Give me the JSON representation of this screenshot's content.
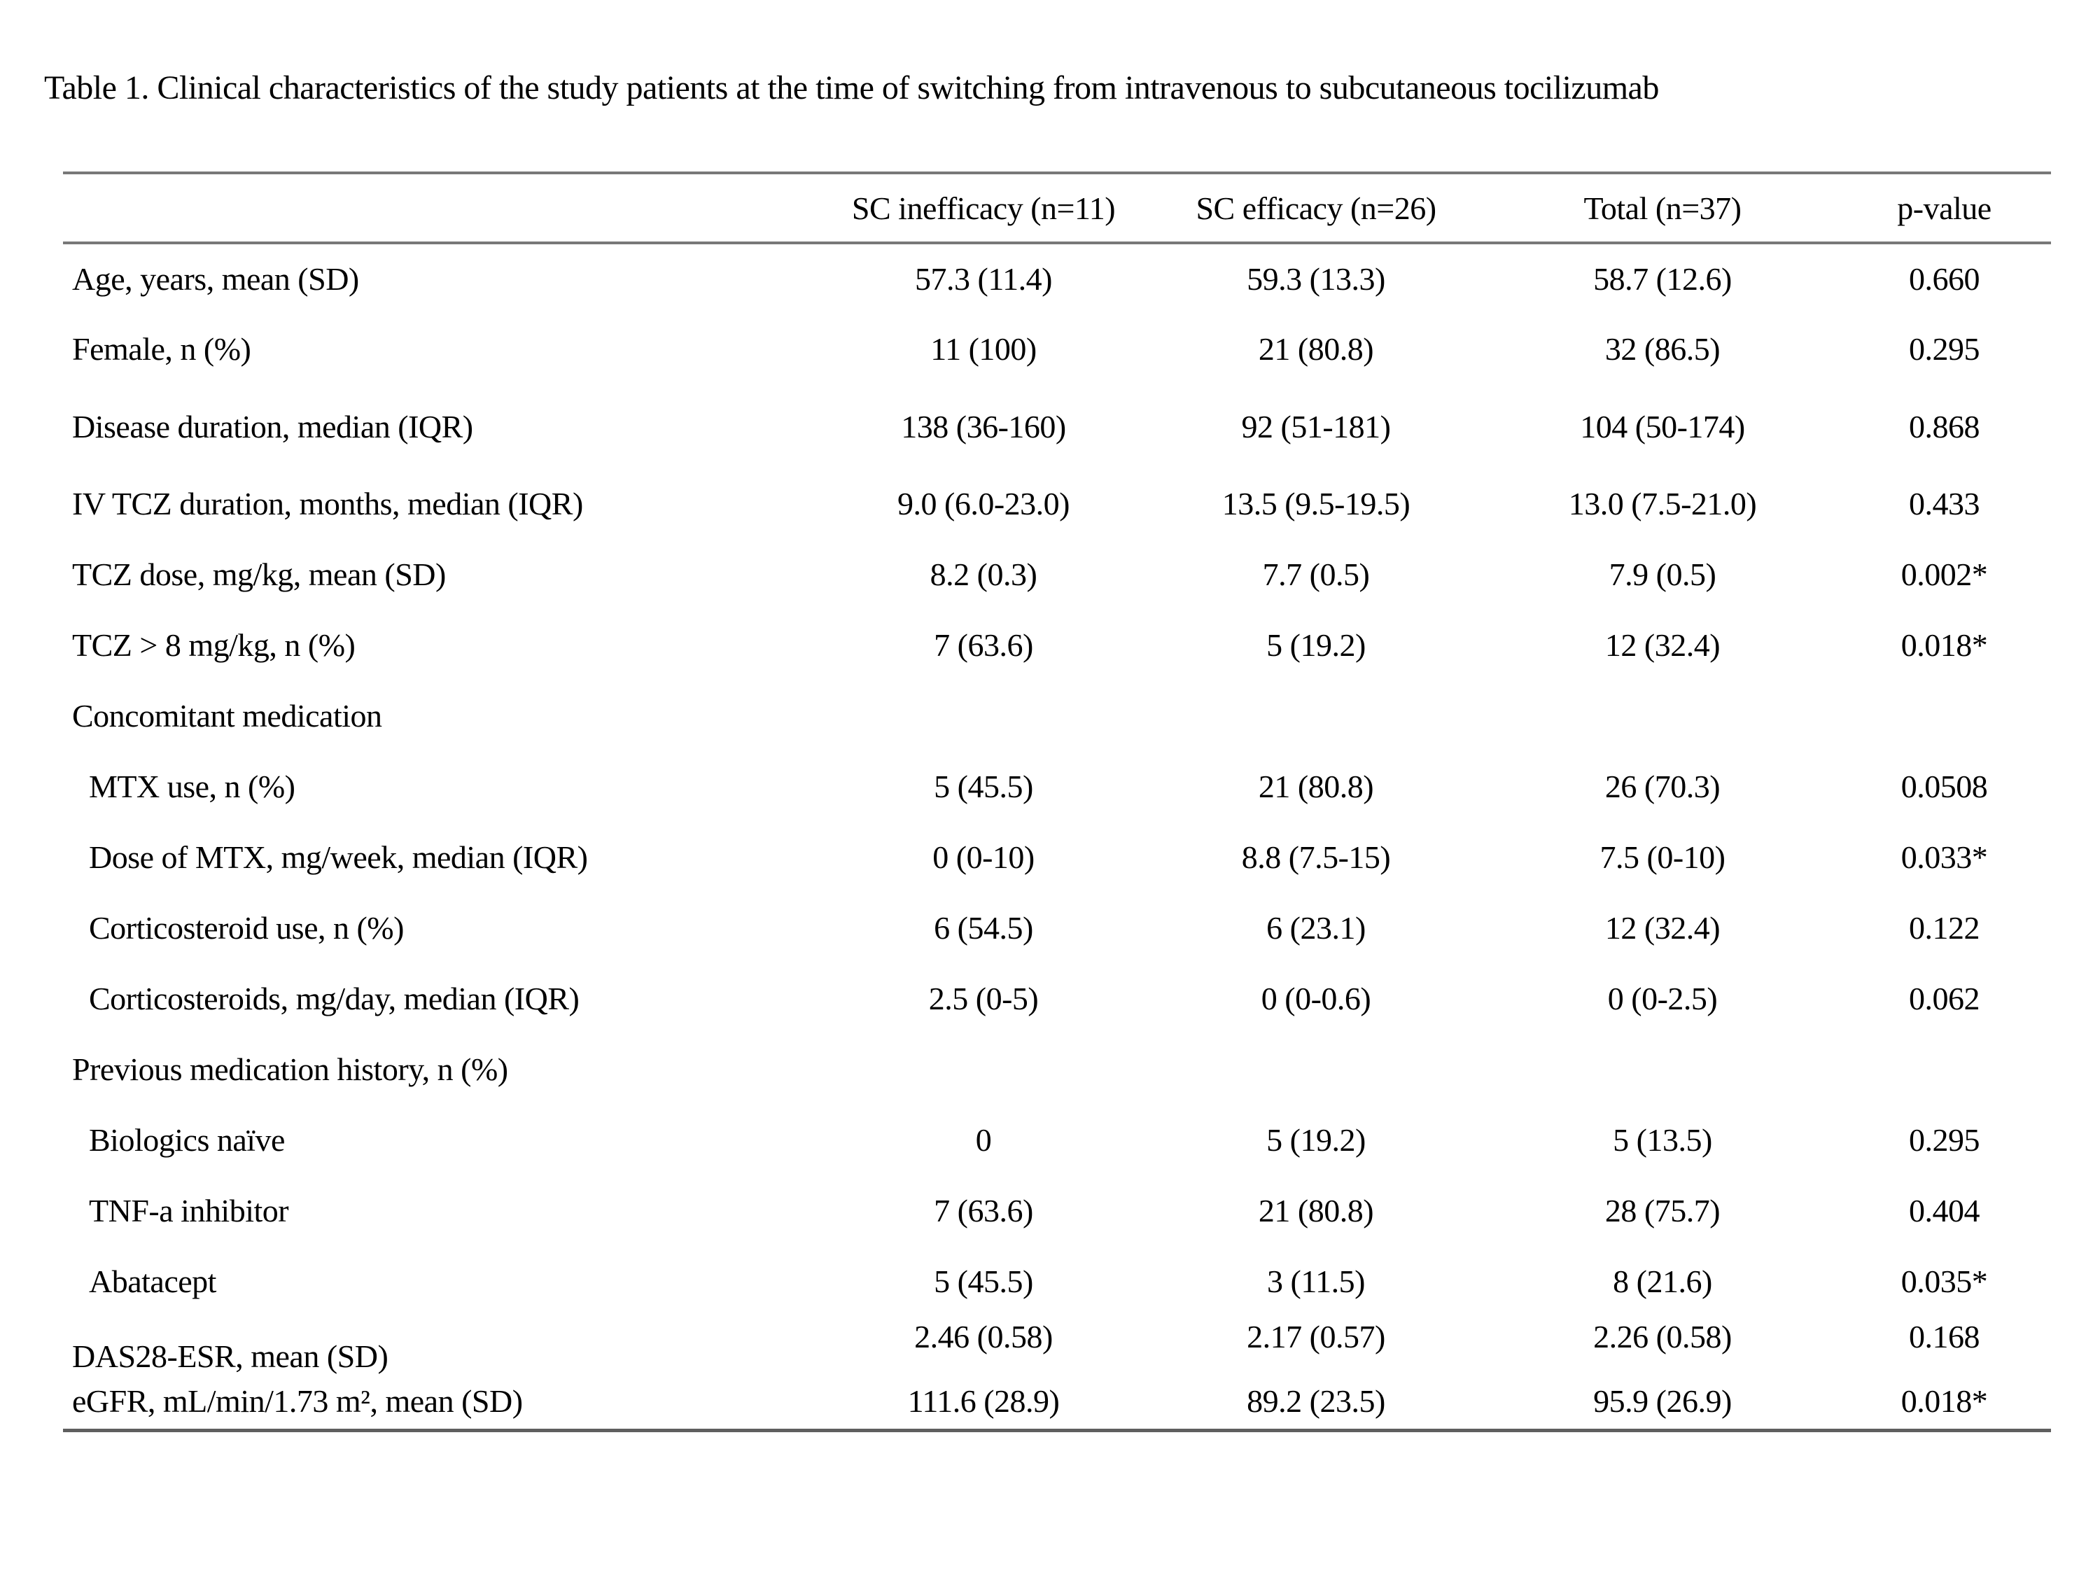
{
  "title": "Table 1. Clinical characteristics of the study patients at the time of switching from intravenous to subcutaneous tocilizumab",
  "table": {
    "columns": [
      "",
      "SC inefficacy (n=11)",
      "SC efficacy (n=26)",
      "Total (n=37)",
      "p-value"
    ],
    "rows": [
      {
        "label": "Age, years, mean (SD)",
        "indent": false,
        "values": [
          "57.3 (11.4)",
          "59.3 (13.3)",
          "58.7 (12.6)",
          "0.660"
        ]
      },
      {
        "label": "Female, n (%)",
        "indent": false,
        "values": [
          "11 (100)",
          "21 (80.8)",
          "32 (86.5)",
          "0.295"
        ]
      },
      {
        "label": "Disease duration, median (IQR)",
        "indent": false,
        "extra_gap": true,
        "values": [
          "138 (36-160)",
          "92 (51-181)",
          "104 (50-174)",
          "0.868"
        ]
      },
      {
        "label": "IV TCZ duration, months, median (IQR)",
        "indent": false,
        "values": [
          "9.0 (6.0-23.0)",
          "13.5 (9.5-19.5)",
          "13.0 (7.5-21.0)",
          "0.433"
        ]
      },
      {
        "label": "TCZ dose, mg/kg, mean (SD)",
        "indent": false,
        "values": [
          "8.2 (0.3)",
          "7.7 (0.5)",
          "7.9 (0.5)",
          "0.002*"
        ]
      },
      {
        "label": "TCZ > 8 mg/kg, n (%)",
        "indent": false,
        "values": [
          "7 (63.6)",
          "5 (19.2)",
          "12 (32.4)",
          "0.018*"
        ]
      },
      {
        "label": "Concomitant medication",
        "indent": false,
        "section": true,
        "values": [
          "",
          "",
          "",
          ""
        ]
      },
      {
        "label": "MTX use, n (%)",
        "indent": true,
        "values": [
          "5 (45.5)",
          "21 (80.8)",
          "26 (70.3)",
          "0.0508"
        ]
      },
      {
        "label": "Dose of MTX, mg/week, median (IQR)",
        "indent": true,
        "values": [
          "0 (0-10)",
          "8.8 (7.5-15)",
          "7.5 (0-10)",
          "0.033*"
        ]
      },
      {
        "label": "Corticosteroid use, n (%)",
        "indent": true,
        "values": [
          "6 (54.5)",
          "6 (23.1)",
          "12 (32.4)",
          "0.122"
        ]
      },
      {
        "label": "Corticosteroids, mg/day, median (IQR)",
        "indent": true,
        "values": [
          "2.5 (0-5)",
          "0 (0-0.6)",
          "0 (0-2.5)",
          "0.062"
        ]
      },
      {
        "label": "Previous medication history, n (%)",
        "indent": false,
        "section": true,
        "values": [
          "",
          "",
          "",
          ""
        ]
      },
      {
        "label": "Biologics naïve",
        "indent": true,
        "values": [
          "0",
          "5 (19.2)",
          "5 (13.5)",
          "0.295"
        ]
      },
      {
        "label": "TNF-a inhibitor",
        "indent": true,
        "values": [
          "7 (63.6)",
          "21 (80.8)",
          "28 (75.7)",
          "0.404"
        ]
      },
      {
        "label": "Abatacept",
        "indent": true,
        "values": [
          "5 (45.5)",
          "3 (11.5)",
          "8 (21.6)",
          "0.035*"
        ]
      },
      {
        "label": "DAS28-ESR, mean (SD)",
        "indent": false,
        "baseline_quirk": true,
        "values": [
          "2.46 (0.58)",
          "2.17 (0.57)",
          "2.26 (0.58)",
          "0.168"
        ]
      },
      {
        "label": "eGFR, mL/min/1.73 m², mean (SD)",
        "indent": false,
        "compact": true,
        "values": [
          "111.6 (28.9)",
          "89.2 (23.5)",
          "95.9 (26.9)",
          "0.018*"
        ]
      }
    ]
  }
}
